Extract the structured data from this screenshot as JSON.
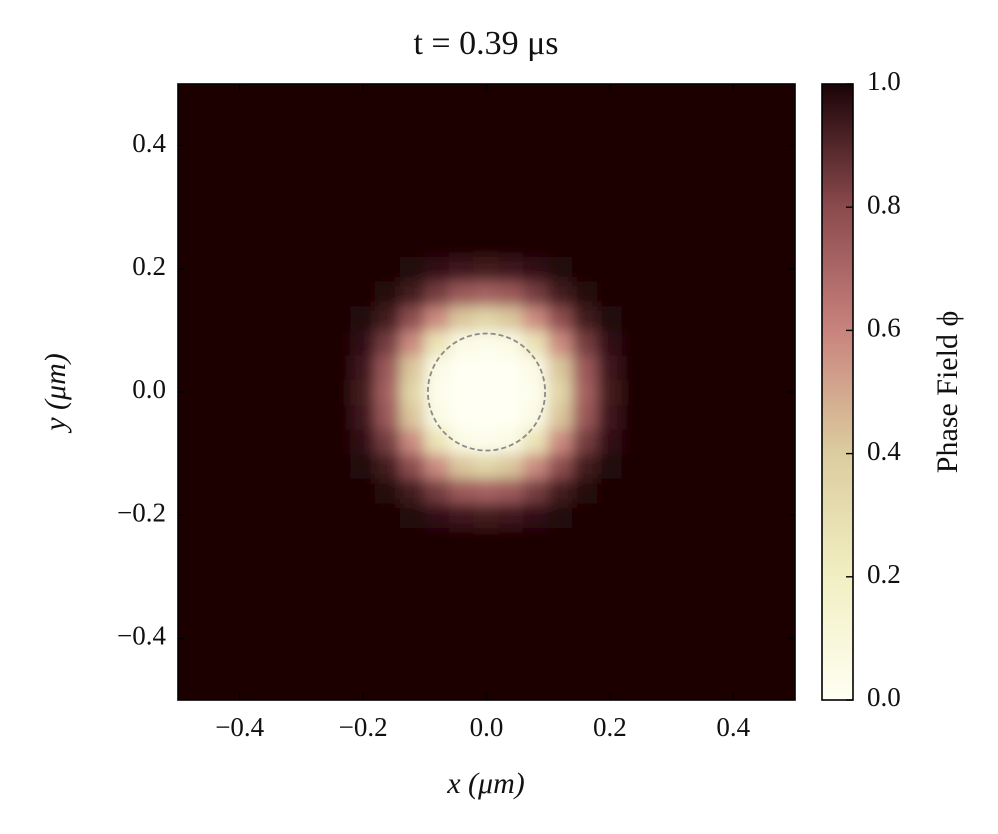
{
  "chart_data": {
    "type": "heatmap",
    "title": "t = 0.39 μs",
    "x_label": "x (μm)",
    "y_label": "y (μm)",
    "colorbar_label": "Phase Field ϕ",
    "colormap": [
      "#fffff3",
      "#f1efc2",
      "#dccd9f",
      "#c9837d",
      "#8b4a4e",
      "#1b0306"
    ],
    "clim": [
      0,
      1
    ],
    "cticks": [
      {
        "value": 0,
        "label": "0.0"
      },
      0.2,
      0.4,
      0.6,
      0.8,
      {
        "value": 1,
        "label": "1.0"
      }
    ],
    "xlim": [
      -0.5,
      0.5
    ],
    "ylim": [
      -0.5,
      0.5
    ],
    "xticks": [
      {
        "value": -0.4,
        "label": "−0.4"
      },
      {
        "value": -0.2,
        "label": "−0.2"
      },
      {
        "value": 0,
        "label": "0.0"
      },
      0.2,
      0.4
    ],
    "yticks": [
      {
        "value": -0.4,
        "label": "−0.4"
      },
      {
        "value": -0.2,
        "label": "−0.2"
      },
      {
        "value": 0,
        "label": "0.0"
      },
      0.2,
      0.4
    ],
    "contour_radius": 0.095,
    "contour_color": "#8a8a8a",
    "x": [
      -0.48,
      -0.44,
      -0.4,
      -0.36,
      -0.32,
      -0.28,
      -0.24,
      -0.2,
      -0.16,
      -0.12,
      -0.08,
      -0.04,
      0,
      0.04,
      0.08,
      0.12,
      0.16,
      0.2,
      0.24,
      0.28,
      0.32,
      0.36,
      0.4,
      0.44,
      0.48
    ],
    "y": [
      -0.48,
      -0.44,
      -0.4,
      -0.36,
      -0.32,
      -0.28,
      -0.24,
      -0.2,
      -0.16,
      -0.12,
      -0.08,
      -0.04,
      0,
      0.04,
      0.08,
      0.12,
      0.16,
      0.2,
      0.24,
      0.28,
      0.32,
      0.36,
      0.4,
      0.44,
      0.48
    ],
    "z": [
      [
        1,
        1,
        1,
        1,
        1,
        1,
        1,
        1,
        1,
        1,
        1,
        1,
        1,
        1,
        1,
        1,
        1,
        1,
        1,
        1,
        1,
        1,
        1,
        1,
        1
      ],
      [
        1,
        1,
        1,
        1,
        1,
        1,
        1,
        1,
        1,
        1,
        1,
        1,
        1,
        1,
        1,
        1,
        1,
        1,
        1,
        1,
        1,
        1,
        1,
        1,
        1
      ],
      [
        1,
        1,
        1,
        1,
        1,
        1,
        1,
        1,
        1,
        1,
        1,
        1,
        1,
        1,
        1,
        1,
        1,
        1,
        1,
        1,
        1,
        1,
        1,
        1,
        1
      ],
      [
        1,
        1,
        1,
        1,
        1,
        1,
        1,
        1,
        1,
        1,
        1,
        1,
        1,
        1,
        1,
        1,
        1,
        1,
        1,
        1,
        1,
        1,
        1,
        1,
        1
      ],
      [
        1,
        1,
        1,
        1,
        1,
        1,
        1,
        1,
        1,
        1,
        1,
        1,
        1,
        1,
        1,
        1,
        1,
        1,
        1,
        1,
        1,
        1,
        1,
        1,
        1
      ],
      [
        1,
        1,
        1,
        1,
        1,
        1,
        1,
        1,
        1,
        1,
        1,
        1,
        1,
        1,
        1,
        1,
        1,
        1,
        1,
        1,
        1,
        1,
        1,
        1,
        1
      ],
      [
        1,
        1,
        1,
        1,
        1,
        1,
        1,
        1,
        1,
        1,
        1,
        1,
        1,
        1,
        1,
        1,
        1,
        1,
        1,
        1,
        1,
        1,
        1,
        1,
        1
      ],
      [
        1,
        1,
        1,
        1,
        1,
        1,
        1,
        1,
        1,
        0.99,
        0.96,
        0.94,
        0.93,
        0.94,
        0.96,
        0.99,
        1,
        1,
        1,
        1,
        1,
        1,
        1,
        1,
        1
      ],
      [
        1,
        1,
        1,
        1,
        1,
        1,
        1,
        1,
        0.98,
        0.93,
        0.84,
        0.75,
        0.72,
        0.75,
        0.84,
        0.93,
        0.98,
        1,
        1,
        1,
        1,
        1,
        1,
        1,
        1
      ],
      [
        1,
        1,
        1,
        1,
        1,
        1,
        1,
        0.99,
        0.93,
        0.79,
        0.58,
        0.42,
        0.35,
        0.42,
        0.58,
        0.79,
        0.93,
        0.99,
        1,
        1,
        1,
        1,
        1,
        1,
        1
      ],
      [
        1,
        1,
        1,
        1,
        1,
        1,
        1,
        0.96,
        0.84,
        0.58,
        0.27,
        0.06,
        0.03,
        0.06,
        0.27,
        0.58,
        0.84,
        0.96,
        1,
        1,
        1,
        1,
        1,
        1,
        1
      ],
      [
        1,
        1,
        1,
        1,
        1,
        1,
        1,
        0.94,
        0.75,
        0.42,
        0.06,
        0,
        0,
        0,
        0.06,
        0.42,
        0.75,
        0.94,
        1,
        1,
        1,
        1,
        1,
        1,
        1
      ],
      [
        1,
        1,
        1,
        1,
        1,
        1,
        1,
        0.93,
        0.72,
        0.35,
        0.03,
        0,
        0,
        0,
        0.03,
        0.35,
        0.72,
        0.93,
        1,
        1,
        1,
        1,
        1,
        1,
        1
      ],
      [
        1,
        1,
        1,
        1,
        1,
        1,
        1,
        0.94,
        0.75,
        0.42,
        0.06,
        0,
        0,
        0,
        0.06,
        0.42,
        0.75,
        0.94,
        1,
        1,
        1,
        1,
        1,
        1,
        1
      ],
      [
        1,
        1,
        1,
        1,
        1,
        1,
        1,
        0.96,
        0.84,
        0.58,
        0.27,
        0.06,
        0.03,
        0.06,
        0.27,
        0.58,
        0.84,
        0.96,
        1,
        1,
        1,
        1,
        1,
        1,
        1
      ],
      [
        1,
        1,
        1,
        1,
        1,
        1,
        1,
        0.99,
        0.93,
        0.79,
        0.58,
        0.42,
        0.35,
        0.42,
        0.58,
        0.79,
        0.93,
        0.99,
        1,
        1,
        1,
        1,
        1,
        1,
        1
      ],
      [
        1,
        1,
        1,
        1,
        1,
        1,
        1,
        1,
        0.98,
        0.93,
        0.84,
        0.75,
        0.72,
        0.75,
        0.84,
        0.93,
        0.98,
        1,
        1,
        1,
        1,
        1,
        1,
        1,
        1
      ],
      [
        1,
        1,
        1,
        1,
        1,
        1,
        1,
        1,
        1,
        0.99,
        0.96,
        0.94,
        0.93,
        0.94,
        0.96,
        0.99,
        1,
        1,
        1,
        1,
        1,
        1,
        1,
        1,
        1
      ],
      [
        1,
        1,
        1,
        1,
        1,
        1,
        1,
        1,
        1,
        1,
        1,
        1,
        1,
        1,
        1,
        1,
        1,
        1,
        1,
        1,
        1,
        1,
        1,
        1,
        1
      ],
      [
        1,
        1,
        1,
        1,
        1,
        1,
        1,
        1,
        1,
        1,
        1,
        1,
        1,
        1,
        1,
        1,
        1,
        1,
        1,
        1,
        1,
        1,
        1,
        1,
        1
      ],
      [
        1,
        1,
        1,
        1,
        1,
        1,
        1,
        1,
        1,
        1,
        1,
        1,
        1,
        1,
        1,
        1,
        1,
        1,
        1,
        1,
        1,
        1,
        1,
        1,
        1
      ],
      [
        1,
        1,
        1,
        1,
        1,
        1,
        1,
        1,
        1,
        1,
        1,
        1,
        1,
        1,
        1,
        1,
        1,
        1,
        1,
        1,
        1,
        1,
        1,
        1,
        1
      ],
      [
        1,
        1,
        1,
        1,
        1,
        1,
        1,
        1,
        1,
        1,
        1,
        1,
        1,
        1,
        1,
        1,
        1,
        1,
        1,
        1,
        1,
        1,
        1,
        1,
        1
      ],
      [
        1,
        1,
        1,
        1,
        1,
        1,
        1,
        1,
        1,
        1,
        1,
        1,
        1,
        1,
        1,
        1,
        1,
        1,
        1,
        1,
        1,
        1,
        1,
        1,
        1
      ],
      [
        1,
        1,
        1,
        1,
        1,
        1,
        1,
        1,
        1,
        1,
        1,
        1,
        1,
        1,
        1,
        1,
        1,
        1,
        1,
        1,
        1,
        1,
        1,
        1,
        1
      ]
    ]
  }
}
